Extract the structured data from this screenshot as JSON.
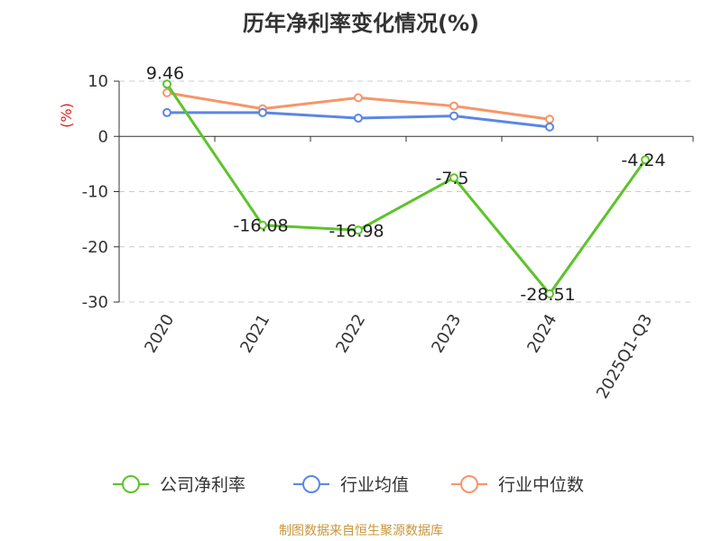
{
  "colors": {
    "company": "#5cc42a",
    "industry_avg": "#5b86e5",
    "industry_median": "#f79568",
    "axis": "#333333",
    "grid": "#cccccc",
    "unit": "#e02020",
    "source": "#c8963c"
  },
  "chart_data": {
    "type": "line",
    "title": "历年净利率变化情况(%)",
    "ylabel": "(%)",
    "xlabel": "",
    "ylim": [
      -30,
      10
    ],
    "yticks": [
      10,
      0,
      -10,
      -20,
      -30
    ],
    "grid": true,
    "categories": [
      "2020",
      "2021",
      "2022",
      "2023",
      "2024",
      "2025Q1-Q3"
    ],
    "series": [
      {
        "name": "公司净利率",
        "key": "company",
        "values": [
          9.46,
          -16.08,
          -16.98,
          -7.5,
          -28.51,
          -4.24
        ],
        "labeled": true
      },
      {
        "name": "行业均值",
        "key": "industry_avg",
        "values": [
          4.3,
          4.3,
          3.3,
          3.7,
          1.7,
          null
        ],
        "labeled": false
      },
      {
        "name": "行业中位数",
        "key": "industry_median",
        "values": [
          7.9,
          5.0,
          7.0,
          5.5,
          3.1,
          null
        ],
        "labeled": false
      }
    ],
    "legend_position": "bottom"
  },
  "source_note": "制图数据来自恒生聚源数据库"
}
